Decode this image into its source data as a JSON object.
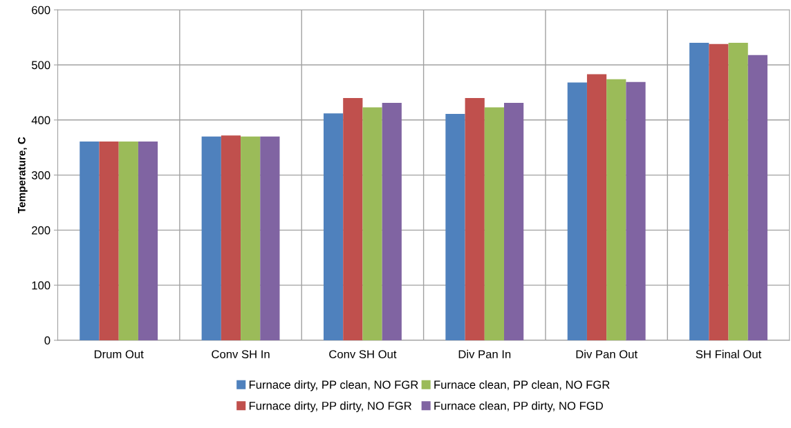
{
  "chart_data": {
    "type": "bar",
    "ylabel": "Temperature, C",
    "categories": [
      "Drum Out",
      "Conv SH In",
      "Conv SH Out",
      "Div Pan In",
      "Div Pan Out",
      "SH Final Out"
    ],
    "series": [
      {
        "name": "Furnace dirty, PP clean, NO FGR",
        "color": "#4f81bd",
        "values": [
          361,
          370,
          412,
          411,
          468,
          540
        ]
      },
      {
        "name": "Furnace dirty, PP dirty, NO FGR",
        "color": "#c0504d",
        "values": [
          361,
          372,
          440,
          440,
          483,
          538
        ]
      },
      {
        "name": "Furnace clean, PP clean, NO FGR",
        "color": "#9bbb59",
        "values": [
          361,
          370,
          423,
          423,
          474,
          540
        ]
      },
      {
        "name": "Furnace clean, PP dirty, NO FGD",
        "color": "#8064a2",
        "values": [
          361,
          370,
          431,
          431,
          469,
          518
        ]
      }
    ],
    "ylim": [
      0,
      600
    ],
    "yticks": [
      0,
      100,
      200,
      300,
      400,
      500,
      600
    ],
    "grid": true,
    "legend": "bottom"
  }
}
